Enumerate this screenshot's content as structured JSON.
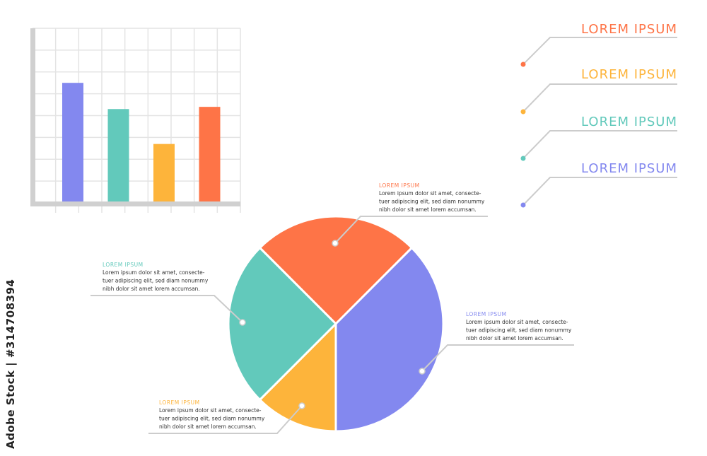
{
  "colors": {
    "orange": "#fe7447",
    "yellow": "#fdb43b",
    "teal": "#62c9bb",
    "purple": "#8388ef",
    "grid": "#e4e4e4",
    "axis": "#d0d0d0",
    "connector": "#cccccc"
  },
  "watermark": "Adobe Stock | #314708394",
  "legend": [
    {
      "label": "LOREM IPSUM",
      "color": "#fe7447"
    },
    {
      "label": "LOREM IPSUM",
      "color": "#fdb43b"
    },
    {
      "label": "LOREM IPSUM",
      "color": "#62c9bb"
    },
    {
      "label": "LOREM IPSUM",
      "color": "#8388ef"
    }
  ],
  "callouts": [
    {
      "title": "LOREM IPSUM",
      "color": "#fe7447",
      "lines": [
        "Lorem ipsum dolor sit amet, consecte-",
        "tuer adipiscing elit, sed diam nonummy",
        "nibh dolor sit amet lorem accumsan."
      ]
    },
    {
      "title": "LOREM IPSUM",
      "color": "#62c9bb",
      "lines": [
        "Lorem ipsum dolor sit amet, consecte-",
        "tuer adipiscing elit, sed diam nonummy",
        "nibh dolor sit amet lorem accumsan."
      ]
    },
    {
      "title": "LOREM IPSUM",
      "color": "#8388ef",
      "lines": [
        "Lorem ipsum dolor sit amet, consecte-",
        "tuer adipiscing elit, sed diam nonummy",
        "nibh dolor sit amet lorem accumsan."
      ]
    },
    {
      "title": "LOREM IPSUM",
      "color": "#fdb43b",
      "lines": [
        "Lorem ipsum dolor sit amet, consecte-",
        "tuer adipiscing elit, sed diam nonummy",
        "nibh dolor sit amet lorem accumsan."
      ]
    }
  ],
  "chart_data": [
    {
      "type": "bar",
      "title": "",
      "xlabel": "",
      "ylabel": "",
      "ylim": [
        0,
        8
      ],
      "grid": true,
      "values": [
        5.5,
        4.3,
        2.7,
        4.4
      ],
      "colors": [
        "#8388ef",
        "#62c9bb",
        "#fdb43b",
        "#fe7447"
      ]
    },
    {
      "type": "pie",
      "title": "",
      "values": [
        25,
        37.5,
        12.5,
        25
      ],
      "colors": [
        "#fe7447",
        "#8388ef",
        "#fdb43b",
        "#62c9bb"
      ]
    }
  ]
}
